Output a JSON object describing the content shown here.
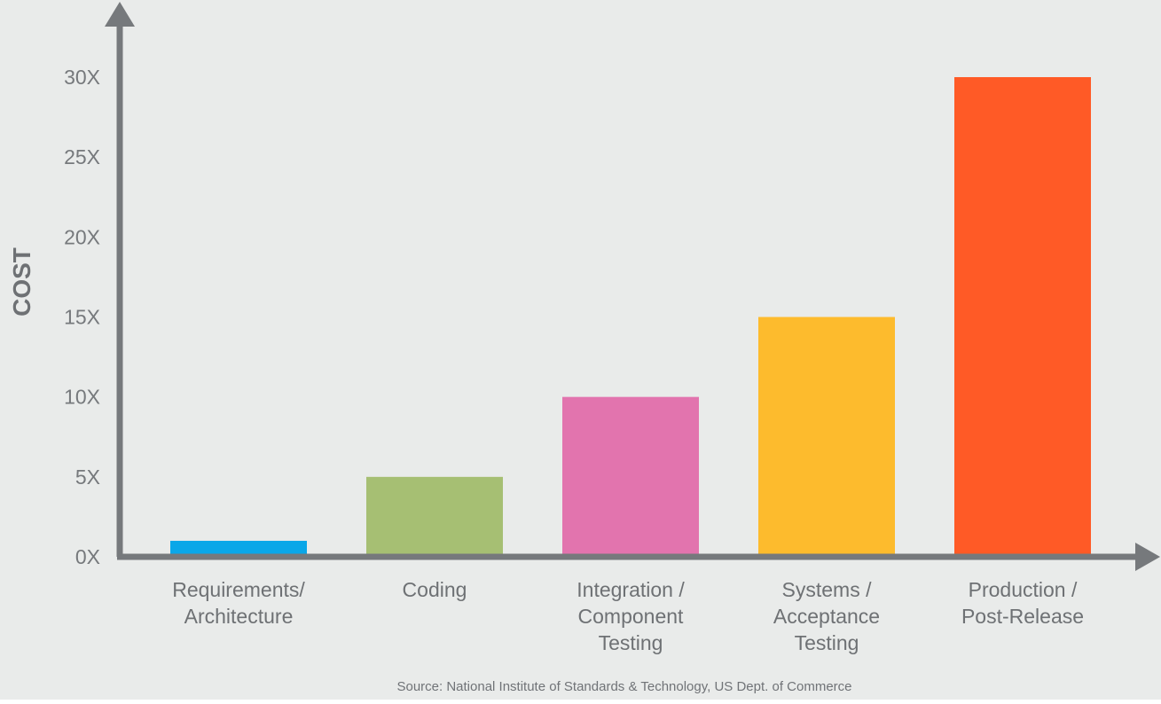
{
  "chart_data": {
    "type": "bar",
    "title": "",
    "ylabel": "COST",
    "xlabel": "",
    "ylim": [
      0,
      30
    ],
    "yticks": [
      "0X",
      "5X",
      "10X",
      "15X",
      "20X",
      "25X",
      "30X"
    ],
    "ytick_values": [
      0,
      5,
      10,
      15,
      20,
      25,
      30
    ],
    "categories": [
      [
        "Requirements/",
        "Architecture"
      ],
      [
        "Coding"
      ],
      [
        "Integration /",
        "Component",
        "Testing"
      ],
      [
        "Systems /",
        "Acceptance",
        "Testing"
      ],
      [
        "Production /",
        "Post-Release"
      ]
    ],
    "values": [
      1,
      5,
      10,
      15,
      30
    ],
    "colors": [
      "#0aa7e8",
      "#a6bf73",
      "#e274ae",
      "#fdbb2d",
      "#ff5a26"
    ],
    "plot_background": "#e9ebea",
    "axis_color": "#76797c",
    "grid": false,
    "legend": "none",
    "source": "Source: National Institute of Standards & Technology, US Dept. of Commerce"
  }
}
